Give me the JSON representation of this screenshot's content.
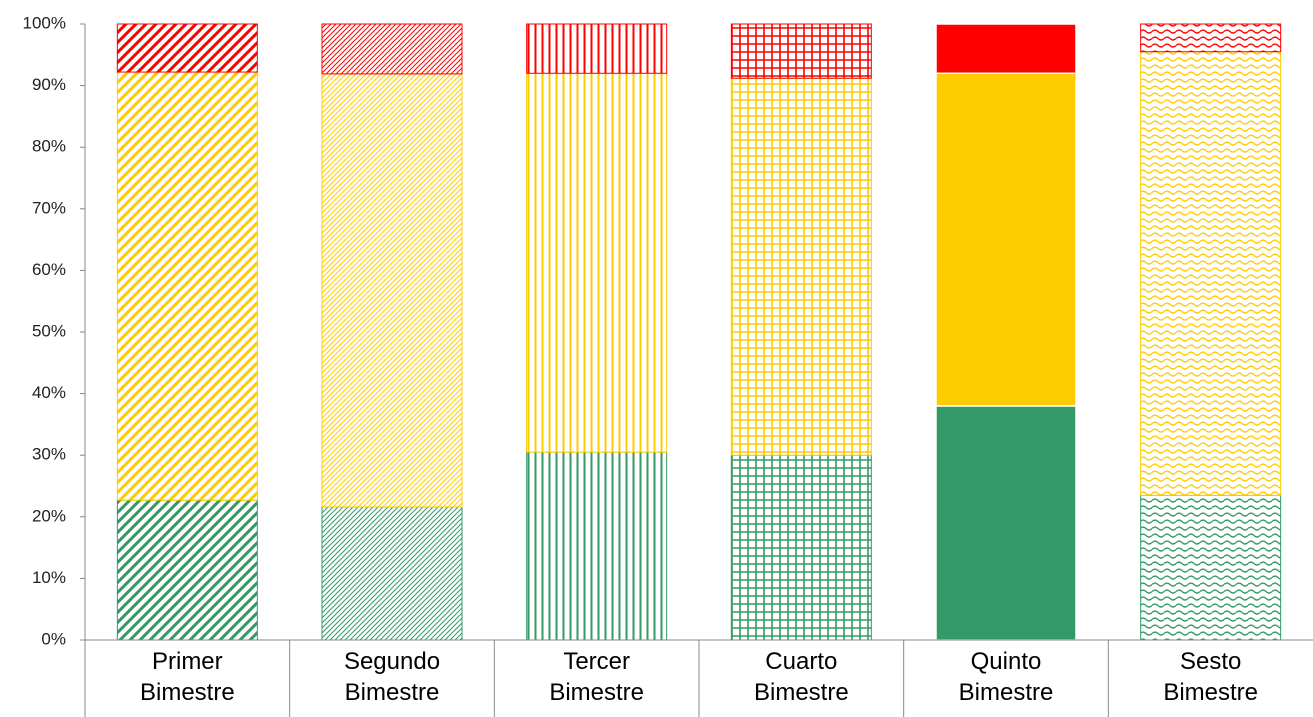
{
  "chart_data": {
    "type": "stacked_bar_100",
    "categories": [
      "Primer Bimestre",
      "Segundo Bimestre",
      "Tercer Bimestre",
      "Cuarto Bimestre",
      "Quinto Bimestre",
      "Sesto Bimestre"
    ],
    "patterns": [
      "diagonal",
      "dense-diagonal",
      "vertical",
      "grid",
      "solid",
      "wave"
    ],
    "series": [
      {
        "color": "#339966",
        "values": [
          22.7,
          21.6,
          30.5,
          30.0,
          38.0,
          23.5
        ]
      },
      {
        "color": "#ffcc00",
        "values": [
          69.5,
          70.3,
          61.5,
          61.2,
          54.0,
          72.0
        ]
      },
      {
        "color": "#ff0000",
        "values": [
          7.8,
          8.1,
          8.0,
          8.8,
          8.0,
          4.5
        ]
      }
    ],
    "ylim": [
      0,
      100
    ],
    "yticks": [
      {
        "value": 0,
        "label": "0%"
      },
      {
        "value": 10,
        "label": "10%"
      },
      {
        "value": 20,
        "label": "20%"
      },
      {
        "value": 30,
        "label": "30%"
      },
      {
        "value": 40,
        "label": "40%"
      },
      {
        "value": 50,
        "label": "50%"
      },
      {
        "value": 60,
        "label": "60%"
      },
      {
        "value": 70,
        "label": "70%"
      },
      {
        "value": 80,
        "label": "80%"
      },
      {
        "value": 90,
        "label": "90%"
      },
      {
        "value": 100,
        "label": "100%"
      }
    ]
  }
}
